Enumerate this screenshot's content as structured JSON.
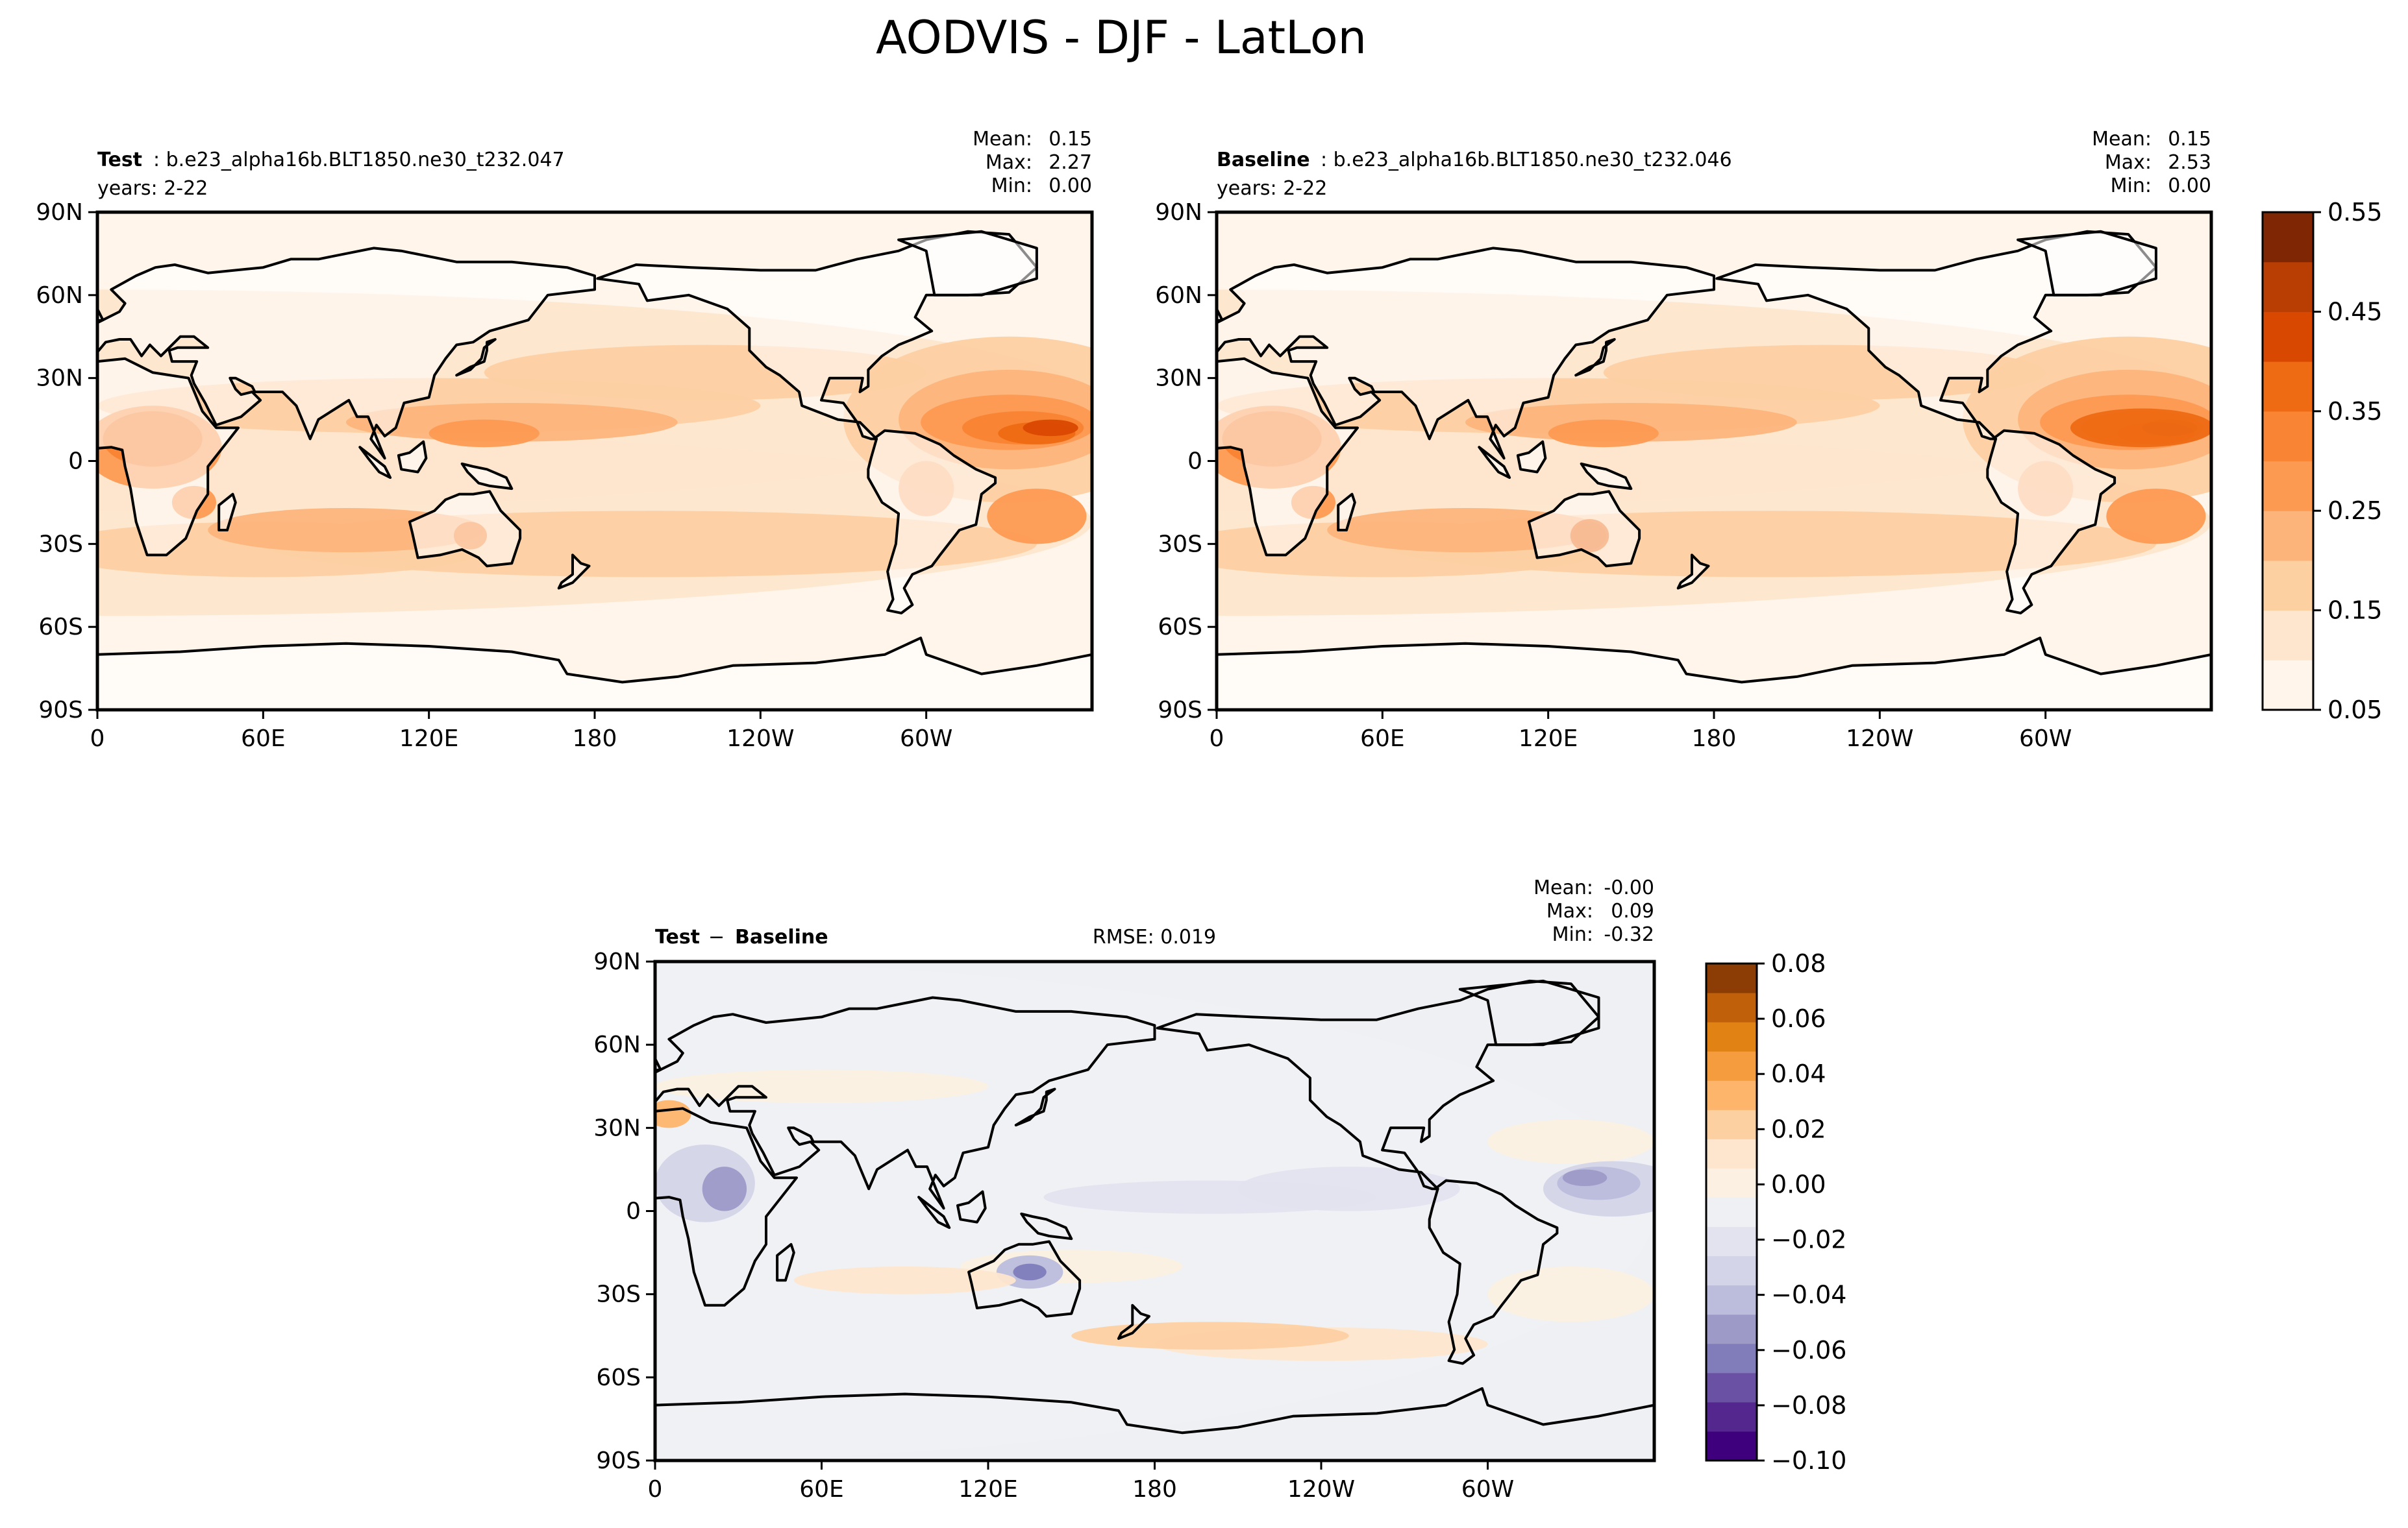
{
  "figure": {
    "title": "AODVIS - DJF - LatLon"
  },
  "colors": {
    "positive": [
      "#fff5eb",
      "#fee6ce",
      "#fdd0a2",
      "#fdb47b",
      "#fd9a52",
      "#f98433",
      "#ee6a13",
      "#d94801",
      "#b93e03",
      "#7f2704"
    ],
    "difference": [
      "#3f007d",
      "#54278f",
      "#6a51a3",
      "#807dba",
      "#9e9ac8",
      "#bcbddc",
      "#d4d4e8",
      "#e3e3ef",
      "#eef0f3",
      "#fbf0e2",
      "#fee6ce",
      "#fdd0a2",
      "#fdb46b",
      "#f59c3e",
      "#e08214",
      "#c0600a",
      "#8c3c05"
    ]
  },
  "panels": {
    "test": {
      "label_bold": "Test",
      "label_case": ": b.e23_alpha16b.BLT1850.ne30_t232.047",
      "years": "years: 2-22",
      "stats_labels": [
        "Mean:",
        "Max:",
        "Min:"
      ],
      "stats_values": [
        "0.15",
        "2.27",
        "0.00"
      ]
    },
    "baseline": {
      "label_bold": "Baseline",
      "label_case": ": b.e23_alpha16b.BLT1850.ne30_t232.046",
      "years": "years: 2-22",
      "stats_labels": [
        "Mean:",
        "Max:",
        "Min:"
      ],
      "stats_values": [
        "0.15",
        "2.53",
        "0.00"
      ]
    },
    "diff": {
      "label_bold": "Test",
      "label_sep": " − ",
      "label_bold2": "Baseline",
      "rmse": "RMSE: 0.019",
      "stats_labels": [
        "Mean:",
        "Max:",
        "Min:"
      ],
      "stats_values": [
        "-0.00",
        "0.09",
        "-0.32"
      ]
    }
  },
  "chart_data": [
    {
      "type": "heatmap",
      "name": "test",
      "xticks": [
        "0",
        "60E",
        "120E",
        "180",
        "120W",
        "60W"
      ],
      "yticks": [
        "90N",
        "60N",
        "30N",
        "0",
        "30S",
        "60S",
        "90S"
      ],
      "xlim": [
        0,
        360
      ],
      "ylim": [
        -90,
        90
      ],
      "levels": [
        0.05,
        0.1,
        0.15,
        0.2,
        0.25,
        0.3,
        0.35,
        0.4,
        0.45,
        0.5,
        0.55
      ]
    },
    {
      "type": "heatmap",
      "name": "baseline",
      "xticks": [
        "0",
        "60E",
        "120E",
        "180",
        "120W",
        "60W"
      ],
      "yticks": [
        "90N",
        "60N",
        "30N",
        "0",
        "30S",
        "60S",
        "90S"
      ],
      "xlim": [
        0,
        360
      ],
      "ylim": [
        -90,
        90
      ],
      "levels": [
        0.05,
        0.1,
        0.15,
        0.2,
        0.25,
        0.3,
        0.35,
        0.4,
        0.45,
        0.5,
        0.55
      ],
      "colorbar_ticks": [
        "0.55",
        "0.45",
        "0.35",
        "0.25",
        "0.15",
        "0.05"
      ]
    },
    {
      "type": "heatmap",
      "name": "difference",
      "xticks": [
        "0",
        "60E",
        "120E",
        "180",
        "120W",
        "60W"
      ],
      "yticks": [
        "90N",
        "60N",
        "30N",
        "0",
        "30S",
        "60S",
        "90S"
      ],
      "xlim": [
        0,
        360
      ],
      "ylim": [
        -90,
        90
      ],
      "levels": [
        -0.1,
        -0.09,
        -0.08,
        -0.07,
        -0.06,
        -0.05,
        -0.04,
        -0.03,
        -0.02,
        -0.01,
        0.0,
        0.01,
        0.02,
        0.03,
        0.04,
        0.05,
        0.06,
        0.07,
        0.08,
        0.09
      ],
      "colorbar_ticks": [
        "0.08",
        "0.06",
        "0.04",
        "0.02",
        "0.00",
        "−0.02",
        "−0.04",
        "−0.06",
        "−0.08",
        "−0.10"
      ]
    }
  ]
}
